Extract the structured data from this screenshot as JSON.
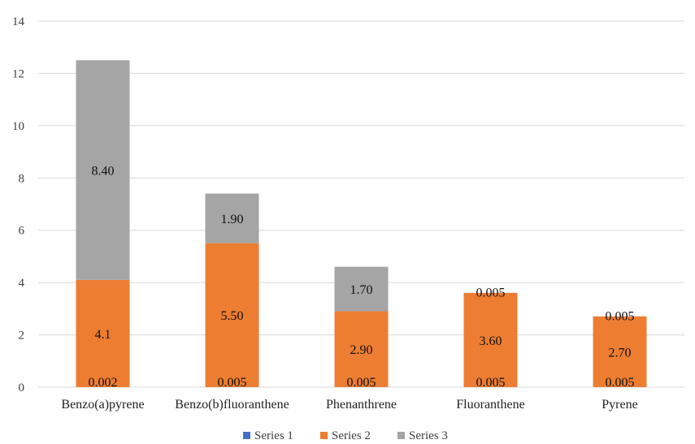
{
  "chart_data": {
    "type": "bar",
    "stacked": true,
    "title": "",
    "xlabel": "",
    "ylabel": "",
    "ylim": [
      0,
      14
    ],
    "yticks": [
      0,
      2,
      4,
      6,
      8,
      10,
      12,
      14
    ],
    "grid": true,
    "legend_position": "bottom",
    "categories": [
      "Benzo(a)pyrene",
      "Benzo(b)fluoranthene",
      "Phenanthrene",
      "Fluoranthene",
      "Pyrene"
    ],
    "series": [
      {
        "name": "Series 1",
        "color": "#4472C4",
        "values": [
          0.002,
          0.005,
          0.005,
          0.005,
          0.005
        ],
        "labels": [
          "0.002",
          "0.005",
          "0.005",
          "0.005",
          "0.005"
        ]
      },
      {
        "name": "Series 2",
        "color": "#ED7D31",
        "values": [
          4.1,
          5.5,
          2.9,
          3.6,
          2.7
        ],
        "labels": [
          "4.1",
          "5.50",
          "2.90",
          "3.60",
          "2.70"
        ]
      },
      {
        "name": "Series 3",
        "color": "#A5A5A5",
        "values": [
          8.4,
          1.9,
          1.7,
          0.005,
          0.005
        ],
        "labels": [
          "8.40",
          "1.90",
          "1.70",
          "0.005",
          "0.005"
        ]
      }
    ]
  }
}
